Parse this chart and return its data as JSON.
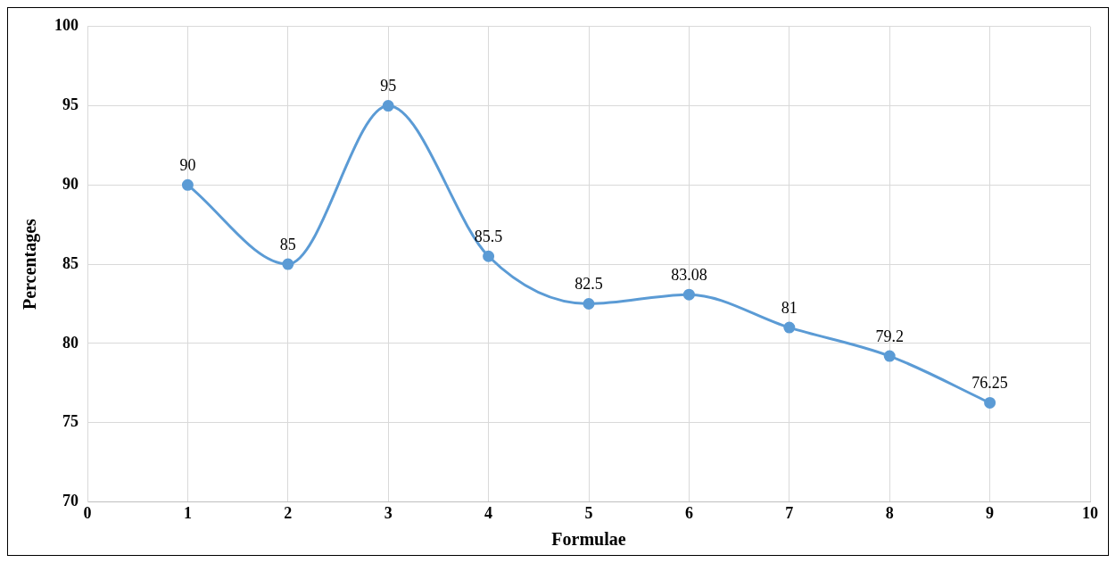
{
  "chart_data": {
    "type": "line",
    "xlabel": "Formulae",
    "ylabel": "Percentages",
    "x": [
      1,
      2,
      3,
      4,
      5,
      6,
      7,
      8,
      9
    ],
    "series": [
      {
        "color": "#5b9bd5",
        "values": [
          90,
          85,
          95,
          85.5,
          82.5,
          83.08,
          81,
          79.2,
          76.25
        ]
      }
    ],
    "xlim": [
      0,
      10
    ],
    "xticks": [
      0,
      1,
      2,
      3,
      4,
      5,
      6,
      7,
      8,
      9,
      10
    ],
    "ylim": [
      70,
      100
    ],
    "yticks": [
      70,
      75,
      80,
      85,
      90,
      95,
      100
    ],
    "grid": true,
    "marker": "circle",
    "line_style": "solid",
    "data_labels": true
  }
}
